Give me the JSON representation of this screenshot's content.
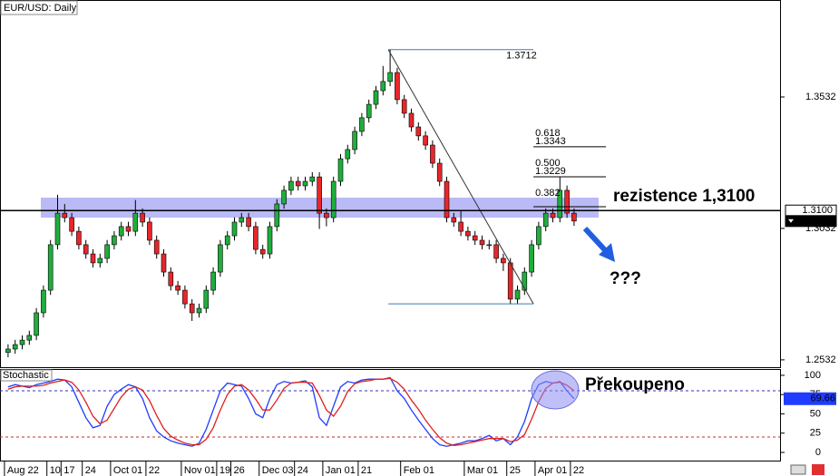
{
  "chart_data": [
    {
      "type": "candlestick",
      "title": "EUR/USD: Daily",
      "categories": [
        "Aug 22",
        null,
        null,
        null,
        null,
        null,
        "10",
        null,
        "17",
        null,
        null,
        "24",
        null,
        null,
        null,
        "Oct 01",
        null,
        null,
        null,
        null,
        "22",
        null,
        null,
        null,
        null,
        "Nov 01",
        null,
        null,
        null,
        null,
        "19",
        null,
        "26",
        null,
        null,
        null,
        "Dec 03",
        null,
        null,
        null,
        null,
        "24",
        null,
        null,
        null,
        "Jan 01",
        null,
        null,
        null,
        null,
        "21",
        null,
        null,
        null,
        null,
        null,
        "Feb 01",
        null,
        null,
        null,
        null,
        null,
        null,
        null,
        null,
        "Mar 01",
        null,
        null,
        null,
        null,
        null,
        "25",
        null,
        null,
        null,
        "Apr 01",
        null,
        null,
        null,
        null,
        "22"
      ],
      "open": [
        1.256,
        1.2573,
        1.259,
        1.2607,
        1.2625,
        1.2711,
        1.2797,
        1.297,
        1.309,
        1.3073,
        1.3021,
        1.297,
        1.2935,
        1.2901,
        1.2918,
        1.297,
        1.3004,
        1.3039,
        1.3021,
        1.309,
        1.3056,
        1.2987,
        1.2935,
        1.2866,
        1.2814,
        1.2797,
        1.2745,
        1.2711,
        1.2728,
        1.2797,
        1.2866,
        1.297,
        1.3004,
        1.3056,
        1.3073,
        1.3039,
        1.2952,
        1.2935,
        1.3039,
        1.3125,
        1.3177,
        1.3211,
        1.3194,
        1.3211,
        1.3228,
        1.309,
        1.3073,
        1.3211,
        1.3297,
        1.3332,
        1.3401,
        1.3453,
        1.3504,
        1.3556,
        1.3591,
        1.3625,
        1.3522,
        1.347,
        1.3418,
        1.3384,
        1.3349,
        1.328,
        1.3211,
        1.3073,
        1.3056,
        1.3021,
        1.3004,
        1.2987,
        1.297,
        1.297,
        1.2918,
        1.2901,
        1.2763,
        1.2797,
        1.2866,
        1.297,
        1.3039,
        1.309,
        1.3073,
        1.3177,
        1.309
      ],
      "high": [
        1.2591,
        1.2608,
        1.2625,
        1.2643,
        1.2729,
        1.2815,
        1.2988,
        1.316,
        1.3125,
        1.3091,
        1.3039,
        1.2988,
        1.2953,
        1.2936,
        1.2988,
        1.3022,
        1.3057,
        1.3057,
        1.314,
        1.3108,
        1.3074,
        1.3005,
        1.2953,
        1.2884,
        1.2832,
        1.2815,
        1.2763,
        1.2746,
        1.2815,
        1.2884,
        1.2988,
        1.3022,
        1.3074,
        1.3091,
        1.3091,
        1.3057,
        1.297,
        1.3057,
        1.3143,
        1.3195,
        1.3229,
        1.3229,
        1.3229,
        1.3246,
        1.3246,
        1.3108,
        1.3229,
        1.3315,
        1.335,
        1.3419,
        1.3471,
        1.3522,
        1.3574,
        1.365,
        1.3712,
        1.3643,
        1.354,
        1.3488,
        1.3436,
        1.3402,
        1.3367,
        1.3298,
        1.3229,
        1.3091,
        1.31,
        1.3039,
        1.3022,
        1.3005,
        1.2988,
        1.2988,
        1.2936,
        1.2919,
        1.2815,
        1.2884,
        1.2988,
        1.3057,
        1.3108,
        1.3108,
        1.3229,
        1.3195,
        1.3108
      ],
      "low": [
        1.2542,
        1.2555,
        1.2572,
        1.2589,
        1.2607,
        1.2693,
        1.2779,
        1.2952,
        1.3055,
        1.3003,
        1.2952,
        1.2917,
        1.2883,
        1.2883,
        1.29,
        1.2952,
        1.2986,
        1.3003,
        1.3003,
        1.3038,
        1.2969,
        1.2917,
        1.2848,
        1.2796,
        1.2779,
        1.2727,
        1.268,
        1.2693,
        1.271,
        1.2779,
        1.2848,
        1.2952,
        1.2986,
        1.3038,
        1.3021,
        1.2934,
        1.2917,
        1.2917,
        1.3021,
        1.3107,
        1.3159,
        1.3176,
        1.3176,
        1.3193,
        1.303,
        1.304,
        1.3055,
        1.3193,
        1.3279,
        1.3314,
        1.3383,
        1.3435,
        1.3486,
        1.3538,
        1.3573,
        1.3504,
        1.3452,
        1.34,
        1.3366,
        1.3331,
        1.3262,
        1.3193,
        1.3055,
        1.3038,
        1.3003,
        1.2986,
        1.2969,
        1.2952,
        1.2952,
        1.29,
        1.287,
        1.2745,
        1.2745,
        1.2779,
        1.2848,
        1.2952,
        1.3021,
        1.3055,
        1.3055,
        1.3072,
        1.3042
      ],
      "close": [
        1.2573,
        1.259,
        1.2607,
        1.2625,
        1.2711,
        1.2797,
        1.297,
        1.309,
        1.3073,
        1.3021,
        1.297,
        1.2935,
        1.2901,
        1.2918,
        1.297,
        1.3004,
        1.3039,
        1.3021,
        1.309,
        1.3056,
        1.2987,
        1.2935,
        1.2866,
        1.2814,
        1.2797,
        1.2745,
        1.2711,
        1.2728,
        1.2797,
        1.2866,
        1.297,
        1.3004,
        1.3056,
        1.3073,
        1.3039,
        1.2952,
        1.2935,
        1.3039,
        1.3125,
        1.3177,
        1.3211,
        1.3194,
        1.3211,
        1.3228,
        1.309,
        1.3073,
        1.3211,
        1.3297,
        1.3332,
        1.3401,
        1.3453,
        1.3504,
        1.3556,
        1.3591,
        1.3625,
        1.3522,
        1.347,
        1.3418,
        1.3384,
        1.3349,
        1.328,
        1.3211,
        1.3073,
        1.3056,
        1.3021,
        1.3004,
        1.2987,
        1.297,
        1.297,
        1.2918,
        1.2901,
        1.2763,
        1.2797,
        1.2866,
        1.297,
        1.3039,
        1.309,
        1.3073,
        1.3177,
        1.309,
        1.306
      ],
      "up_color": "#1fae3c",
      "down_color": "#e8262b",
      "ylim": [
        1.2504,
        1.3901
      ],
      "yticks": [
        1.2532,
        1.3032,
        1.3532
      ],
      "zone": [
        1.3073,
        1.3149
      ],
      "zone_color": "#8c8cf2",
      "resistance": {
        "value": 1.31,
        "label": "rezistence 1,3100"
      },
      "markers": [
        {
          "value": 1.31,
          "label": "1.3100"
        },
        {
          "value": 1.306,
          "label": "1.3060"
        }
      ],
      "fib": {
        "high": 1.3712,
        "low": 1.2745,
        "levels": [
          {
            "ratio": 0.618,
            "price": 1.3343
          },
          {
            "ratio": {
              "value": 0.5,
              "label": "0.500"
            },
            "price": 1.3229
          },
          {
            "ratio": 0.382
          }
        ]
      },
      "annotations": [
        "???"
      ]
    },
    {
      "type": "line",
      "title": "Stochastic",
      "series": [
        {
          "color": "#1f3cff",
          "values": [
            85,
            88,
            86,
            84,
            88,
            90,
            92,
            95,
            94,
            85,
            65,
            45,
            32,
            35,
            60,
            75,
            82,
            88,
            85,
            70,
            45,
            28,
            20,
            15,
            12,
            10,
            8,
            12,
            30,
            55,
            80,
            90,
            88,
            86,
            70,
            50,
            45,
            70,
            88,
            92,
            90,
            91,
            93,
            85,
            45,
            35,
            60,
            85,
            92,
            90,
            94,
            95,
            95,
            95,
            97,
            80,
            70,
            55,
            42,
            30,
            18,
            10,
            8,
            10,
            12,
            15,
            15,
            18,
            22,
            15,
            18,
            10,
            20,
            40,
            70,
            88,
            92,
            90,
            92,
            80,
            69.66
          ]
        },
        {
          "color": "#e02020",
          "values": [
            82,
            85,
            86,
            86,
            86,
            87,
            90,
            92,
            94,
            91,
            81,
            65,
            47,
            37,
            42,
            57,
            72,
            82,
            85,
            81,
            67,
            48,
            31,
            21,
            16,
            12,
            10,
            10,
            17,
            32,
            55,
            75,
            86,
            88,
            81,
            69,
            55,
            55,
            68,
            83,
            90,
            91,
            91,
            90,
            74,
            55,
            47,
            60,
            79,
            89,
            92,
            93,
            95,
            95,
            96,
            91,
            82,
            68,
            56,
            42,
            30,
            19,
            12,
            9,
            10,
            12,
            14,
            16,
            18,
            18,
            18,
            14,
            16,
            23,
            43,
            66,
            83,
            90,
            91,
            87,
            80
          ]
        }
      ],
      "ylim": [
        -10.6,
        107
      ],
      "yticks": [
        0,
        25,
        50,
        75,
        100
      ],
      "levels": [
        20,
        80
      ],
      "marker": 69.66,
      "annotation": "Překoupeno"
    }
  ]
}
